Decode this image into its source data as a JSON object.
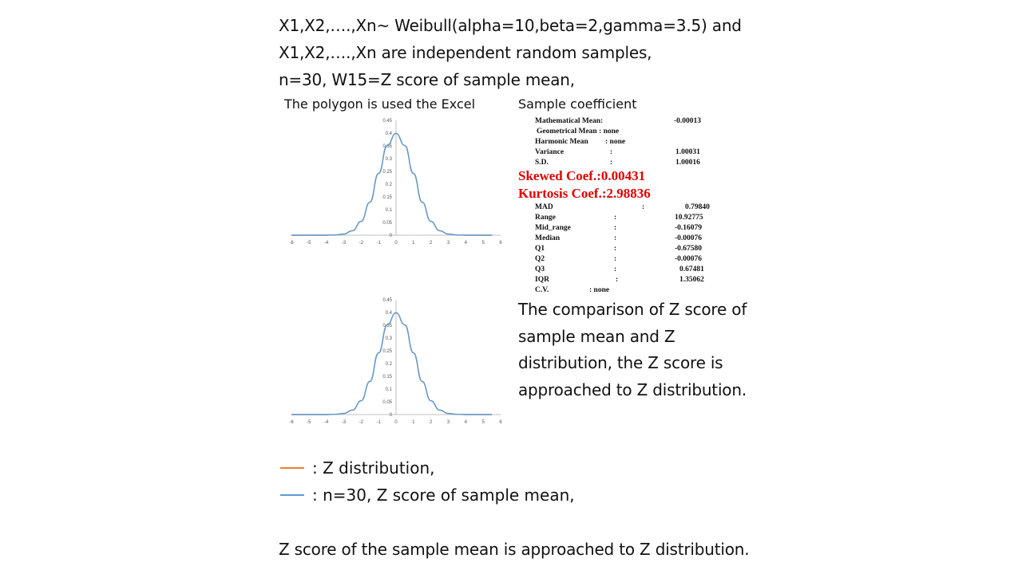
{
  "header": {
    "line1": "X1,X2,….,Xn~ Weibull(alpha=10,beta=2,gamma=3.5) and",
    "line2": "X1,X2,….,Xn are independent random samples,",
    "line3": "n=30, W15=Z score of sample mean,"
  },
  "left_caption": "The polygon is used the Excel",
  "right_caption": "Sample coefficient",
  "colors": {
    "z_distribution": "#ED7D31",
    "sample_mean": "#5B9BD5",
    "highlight": "#E00000",
    "axis": "#BFBFBF"
  },
  "stats_top": [
    {
      "label": "Mathematical Mean:",
      "sep": "",
      "value": "-0.00013"
    },
    {
      "label": "Geometrical Mean : none",
      "sep": "",
      "value": ""
    },
    {
      "label": "Harmonic Mean",
      "sep": ": none",
      "value": ""
    },
    {
      "label": "Variance",
      "sep": ":",
      "value": "1.00031"
    },
    {
      "label": "S.D.",
      "sep": ":",
      "value": "1.00016"
    }
  ],
  "highlights": {
    "skew": "Skewed Coef.:0.00431",
    "kurtosis": "Kurtosis Coef.:2.98836"
  },
  "stats_bottom": [
    {
      "label": "MAD",
      "sep": ":",
      "value": "0.79840"
    },
    {
      "label": "Range",
      "sep": ":",
      "value": "10.92775"
    },
    {
      "label": "Mid_range",
      "sep": ":",
      "value": "-0.16079"
    },
    {
      "label": "Median",
      "sep": ":",
      "value": "-0.00076"
    },
    {
      "label": "Q1",
      "sep": ":",
      "value": "-0.67580"
    },
    {
      "label": "Q2",
      "sep": ":",
      "value": "-0.00076"
    },
    {
      "label": "Q3",
      "sep": ":",
      "value": "0.67481"
    },
    {
      "label": "IQR",
      "sep": ":",
      "value": "1.35062"
    },
    {
      "label": "C.V.",
      "sep": ": none",
      "value": ""
    }
  ],
  "comparison": [
    "The comparison of Z score of",
    "sample mean and Z",
    "distribution, the Z score is",
    "approached to Z distribution."
  ],
  "legend": [
    {
      "text": ": Z distribution,",
      "color_key": "z_distribution"
    },
    {
      "text": ":   n=30, Z score of sample mean,",
      "color_key": "sample_mean"
    }
  ],
  "conclusion": "Z score of the sample mean is approached to Z distribution.",
  "chart_data": [
    {
      "type": "line",
      "title": "",
      "xlabel": "",
      "ylabel": "",
      "xlim": [
        -6,
        6
      ],
      "ylim": [
        0,
        0.45
      ],
      "x_ticks": [
        "-6",
        "-5",
        "-4",
        "-3",
        "-2",
        "-1",
        "0",
        "1",
        "2",
        "3",
        "4",
        "5",
        "6"
      ],
      "y_ticks": [
        "0",
        "0.05",
        "0.1",
        "0.15",
        "0.2",
        "0.25",
        "0.3",
        "0.35",
        "0.4",
        "0.45"
      ],
      "x": [
        -6,
        -5.5,
        -5,
        -4.5,
        -4,
        -3.5,
        -3,
        -2.5,
        -2,
        -1.5,
        -1,
        -0.5,
        0,
        0.5,
        1,
        1.5,
        2,
        2.5,
        3,
        3.5,
        4,
        4.5,
        5,
        5.5
      ],
      "series": [
        {
          "color_key": "sample_mean",
          "values": [
            0,
            0,
            0,
            0,
            0,
            0.0009,
            0.0044,
            0.0175,
            0.054,
            0.1295,
            0.242,
            0.352,
            0.399,
            0.352,
            0.242,
            0.1295,
            0.054,
            0.0175,
            0.0044,
            0.0009,
            0,
            0,
            0,
            0
          ]
        },
        {
          "color_key": "z_distribution",
          "values": [
            0,
            0,
            0,
            0,
            0,
            0.0009,
            0.0044,
            0.0175,
            0.054,
            0.1295,
            0.242,
            0.352,
            0.399,
            0.352,
            0.242,
            0.1295,
            0.054,
            0.0175,
            0.0044,
            0.0009,
            0,
            0,
            0,
            0
          ]
        }
      ]
    },
    {
      "type": "line",
      "title": "",
      "xlabel": "",
      "ylabel": "",
      "xlim": [
        -6,
        6
      ],
      "ylim": [
        0,
        0.45
      ],
      "x_ticks": [
        "-6",
        "-5",
        "-4",
        "-3",
        "-2",
        "-1",
        "0",
        "1",
        "2",
        "3",
        "4",
        "5",
        "6"
      ],
      "y_ticks": [
        "0",
        "0.05",
        "0.1",
        "0.15",
        "0.2",
        "0.25",
        "0.3",
        "0.35",
        "0.4",
        "0.45"
      ],
      "x": [
        -6,
        -5.5,
        -5,
        -4.5,
        -4,
        -3.5,
        -3,
        -2.5,
        -2,
        -1.5,
        -1,
        -0.5,
        0,
        0.5,
        1,
        1.5,
        2,
        2.5,
        3,
        3.5,
        4,
        4.5,
        5,
        5.5
      ],
      "series": [
        {
          "color_key": "sample_mean",
          "values": [
            0,
            0,
            0,
            0,
            0,
            0.0009,
            0.0044,
            0.0175,
            0.054,
            0.1295,
            0.242,
            0.352,
            0.399,
            0.352,
            0.242,
            0.1295,
            0.054,
            0.0175,
            0.0044,
            0.0009,
            0,
            0,
            0,
            0
          ]
        },
        {
          "color_key": "z_distribution",
          "values": [
            0,
            0,
            0,
            0,
            0,
            0.0009,
            0.0044,
            0.0175,
            0.054,
            0.1295,
            0.242,
            0.352,
            0.399,
            0.352,
            0.242,
            0.1295,
            0.054,
            0.0175,
            0.0044,
            0.0009,
            0,
            0,
            0,
            0
          ]
        }
      ]
    }
  ]
}
